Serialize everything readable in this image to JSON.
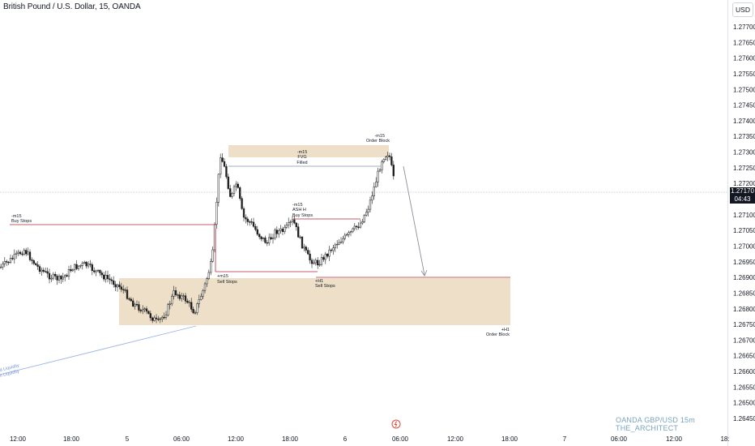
{
  "header": {
    "symbol_title": "British Pound / U.S. Dollar, 15, OANDA",
    "currency_button": "USD"
  },
  "price_axis": {
    "labels": [
      "1.27700",
      "1.27650",
      "1.27600",
      "1.27550",
      "1.27500",
      "1.27450",
      "1.27400",
      "1.27350",
      "1.27300",
      "1.27250",
      "1.27200",
      "1.27150",
      "1.27100",
      "1.27050",
      "1.27000",
      "1.26950",
      "1.26900",
      "1.26850",
      "1.26800",
      "1.26750",
      "1.26700",
      "1.26650",
      "1.26600",
      "1.26550",
      "1.26500",
      "1.26450"
    ],
    "current_price": "1.27170",
    "countdown": "04:43"
  },
  "time_axis": {
    "labels": [
      "12:00",
      "18:00",
      "5",
      "06:00",
      "12:00",
      "18:00",
      "6",
      "06:00",
      "12:00",
      "18:00",
      "7",
      "06:00",
      "12:00",
      "18:"
    ]
  },
  "annotations": {
    "buy_stops_left": {
      "tf": "-m15",
      "text": "Buy Stops"
    },
    "sell_stops_mid": {
      "tf": "+m15",
      "text": "Sell Stops"
    },
    "fvg": {
      "tf": "-m15",
      "line1": "FVG",
      "line2": "Filled"
    },
    "ash_buy_stops": {
      "tf": "-m15",
      "line1": "ASH H",
      "line2": "Buy Stops"
    },
    "order_block_top": {
      "tf": "-m15",
      "text": "Order Block"
    },
    "sell_stops_h1": {
      "tf": "+H1",
      "text": "Sell Stops"
    },
    "order_block_h1": {
      "tf": "+H1",
      "text": "Order Block"
    },
    "liquidity_1": "d Liquidity",
    "liquidity_2": "n Liquidity"
  },
  "watermark": "OANDA   GBP/USD 15m   THE_ARCHITECT",
  "colors": {
    "up": "#1e1e1e",
    "down": "#1e1e1e",
    "zone_fill": "#eedfc8",
    "level_line": "#b2283b",
    "trend_line": "#9fb4e3",
    "fvg_line": "#8891a8",
    "arrow": "#8c8f9a"
  }
}
